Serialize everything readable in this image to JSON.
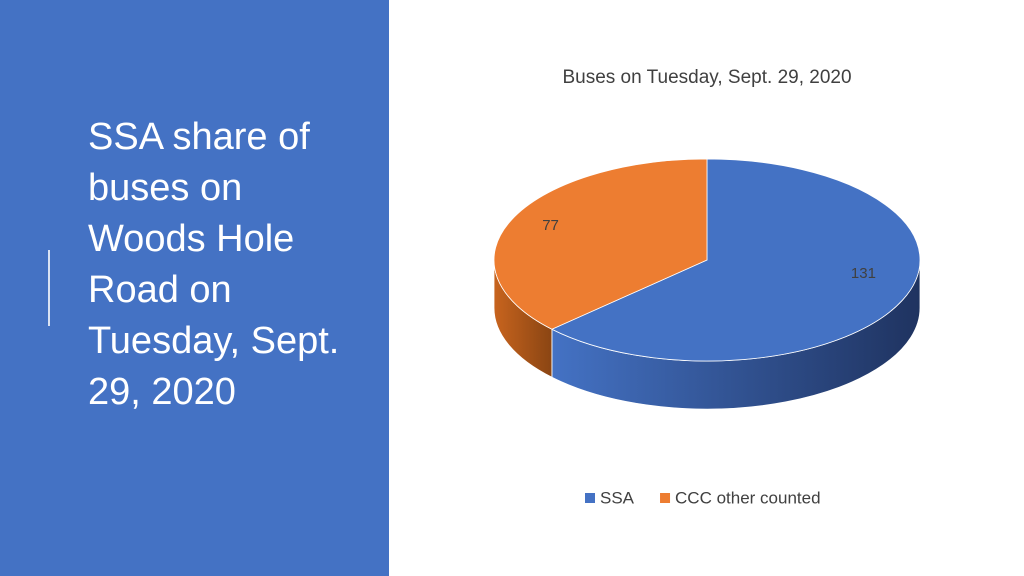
{
  "header": {
    "title_lines": [
      "SSA share of",
      "buses on",
      "Woods Hole",
      "Road on",
      "Tuesday, Sept.",
      "29, 2020"
    ]
  },
  "chart_data": {
    "type": "pie3d",
    "title": "Buses on Tuesday, Sept. 29, 2020",
    "categories": [
      "SSA",
      "CCC other counted"
    ],
    "values": [
      131,
      77
    ],
    "colors": [
      "#4472c4",
      "#ed7d31"
    ],
    "legend": "bottom"
  }
}
